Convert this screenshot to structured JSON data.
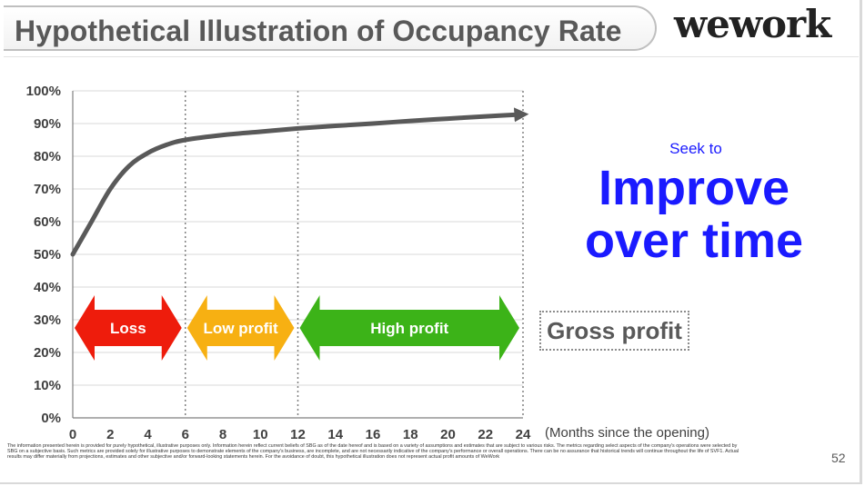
{
  "header": {
    "title": "Hypothetical Illustration of Occupancy Rate",
    "logo_text": "wework"
  },
  "chart_data": {
    "type": "line",
    "x": [
      0,
      1,
      2,
      3,
      4,
      5,
      6,
      8,
      10,
      12,
      14,
      16,
      18,
      20,
      22,
      24
    ],
    "series": [
      {
        "values": [
          50,
          60,
          70,
          77,
          81,
          83.5,
          85,
          86.5,
          87.5,
          88.5,
          89.3,
          90,
          90.8,
          91.5,
          92.2,
          92.8
        ]
      }
    ],
    "xticks": [
      "0",
      "2",
      "4",
      "6",
      "8",
      "10",
      "12",
      "14",
      "16",
      "18",
      "20",
      "22",
      "24"
    ],
    "yticks": [
      "0%",
      "10%",
      "20%",
      "30%",
      "40%",
      "50%",
      "60%",
      "70%",
      "80%",
      "90%",
      "100%"
    ],
    "xlim": [
      0,
      24
    ],
    "ylim": [
      0,
      100
    ],
    "grid": "horizontal",
    "phase_dividers": [
      6,
      12,
      24
    ],
    "phases": [
      {
        "label": "Loss",
        "from": 0,
        "to": 6,
        "color": "#ee1c0c"
      },
      {
        "label": "Low profit",
        "from": 6,
        "to": 12,
        "color": "#f7b012"
      },
      {
        "label": "High profit",
        "from": 12,
        "to": 24,
        "color": "#3cb318"
      }
    ],
    "line_color": "#595959"
  },
  "x_unit_label": "(Months since the opening)",
  "callout": {
    "seek": "Seek to",
    "headline_line1": "Improve",
    "headline_line2": "over time"
  },
  "legend_box": "Gross profit",
  "disclaimer": "The information presented herein is provided for purely hypothetical, illustrative purposes only. Information herein reflect current beliefs of SBG as of the date hereof and is based on a variety of assumptions and estimates that are subject to various risks. The metrics regarding select aspects of the company's operations were selected by SBG on a subjective basis. Such metrics are provided solely for illustrative purposes to demonstrate elements of the company's business, are incomplete, and are not necessarily indicative of the company's performance or overall operations. There can be no assurance that historical trends will continue throughout the life of SVF1. Actual results may differ materially from projections, estimates and other subjective and/or forward-looking statements herein. For the avoidance of doubt, this hypothetical illustration does not represent actual profit amounts of WeWork",
  "page_number": "52"
}
